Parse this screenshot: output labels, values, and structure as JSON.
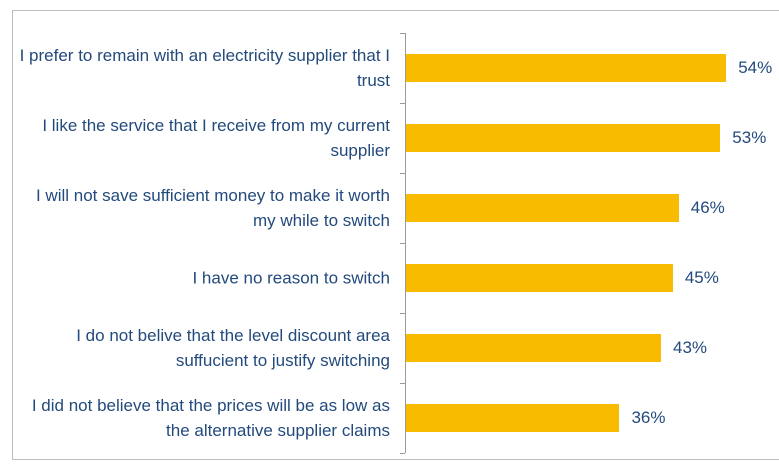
{
  "chart_data": {
    "type": "bar",
    "orientation": "horizontal",
    "categories": [
      "I prefer to remain with an electricity supplier that I trust",
      "I like the service that I receive from my current supplier",
      "I will not save sufficient money to make it worth my while to switch",
      "I have no reason to switch",
      "I do not belive that the level discount area suffucient to justify switching",
      "I did not believe that the prices will be as low as the alternative supplier claims"
    ],
    "values": [
      54,
      53,
      46,
      45,
      43,
      36
    ],
    "value_labels": [
      "54%",
      "53%",
      "46%",
      "45%",
      "43%",
      "36%"
    ],
    "color": "#f9bb00"
  }
}
